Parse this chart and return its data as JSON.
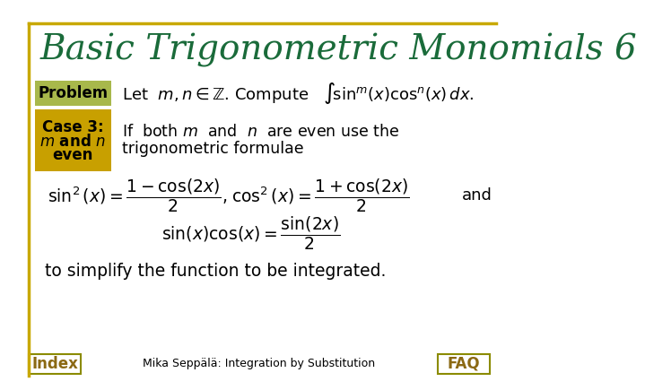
{
  "title": "Basic Trigonometric Monomials 6",
  "title_color": "#1a6b3a",
  "title_fontsize": 28,
  "bg_color": "#ffffff",
  "border_color": "#c8a800",
  "problem_box_color": "#a8b84b",
  "case_box_color": "#c8a000",
  "problem_label": "Problem",
  "case_label_line1": "Case 3:",
  "case_label_line2": "m and n",
  "case_label_line3": "even",
  "bottom_text": "to simplify the function to be integrated.",
  "index_label": "Index",
  "faq_label": "FAQ",
  "footer_text": "Mika Seppälä: Integration by Substitution",
  "index_color": "#8B6914",
  "faq_color": "#8B6914",
  "box_border_color": "#8B8B00"
}
